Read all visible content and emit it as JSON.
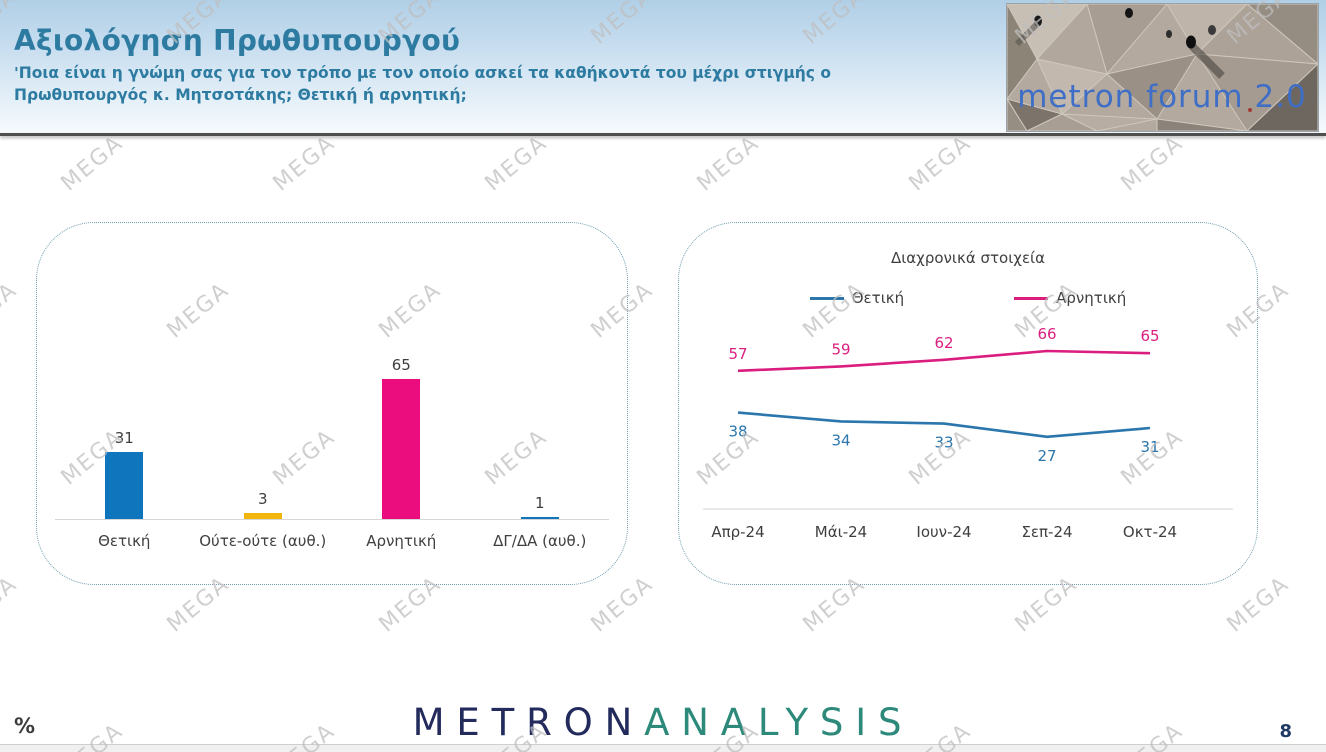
{
  "header": {
    "title": "Αξιολόγηση Πρωθυπουργού",
    "subtitle": "'Ποια είναι η γνώμη σας για τον τρόπο με τον οποίο ασκεί τα καθήκοντά του μέχρι στιγμής ο Πρωθυπουργός κ. Μητσοτάκης; Θετική ή αρνητική;",
    "logo_text": "metron forum 2.0"
  },
  "watermark": {
    "text": "MEGA"
  },
  "footer": {
    "percent_symbol": "%",
    "logo_part1": "METRON",
    "logo_part2": "ANALYSIS",
    "page_number": "8"
  },
  "colors": {
    "title_teal": "#2d7ba1",
    "bar_blue": "#0F75BC",
    "bar_yellow": "#F2B50D",
    "bar_pink": "#EB0D7E",
    "line_blue": "#2B76AC",
    "line_pink": "#DA1D7F",
    "axis_gray": "#d6d6d6",
    "label_gray": "#3f3f3f",
    "logo_navy": "#232a5c",
    "logo_teal": "#2d8a7b",
    "forum_logo_blue": "#3e6ec6"
  },
  "chart_data": [
    {
      "type": "bar",
      "title": "",
      "categories": [
        "Θετική",
        "Ούτε-ούτε (αυθ.)",
        "Αρνητική",
        "ΔΓ/ΔΑ (αυθ.)"
      ],
      "values": [
        31,
        3,
        65,
        1
      ],
      "bar_colors": [
        "#0F75BC",
        "#F2B50D",
        "#EB0D7E",
        "#0F75BC"
      ],
      "ylim": [
        0,
        70
      ],
      "data_labels": true,
      "grid": false
    },
    {
      "type": "line",
      "title": "Διαχρονικά στοιχεία",
      "x": [
        "Απρ-24",
        "Μάι-24",
        "Ιουν-24",
        "Σεπ-24",
        "Οκτ-24"
      ],
      "series": [
        {
          "name": "Θετική",
          "values": [
            38,
            34,
            33,
            27,
            31
          ],
          "color": "#2B76AC",
          "label_position": "below"
        },
        {
          "name": "Αρνητική",
          "values": [
            57,
            59,
            62,
            66,
            65
          ],
          "color": "#DA1D7F",
          "label_position": "above"
        }
      ],
      "legend_position": "top",
      "data_labels": true,
      "grid": false
    }
  ]
}
